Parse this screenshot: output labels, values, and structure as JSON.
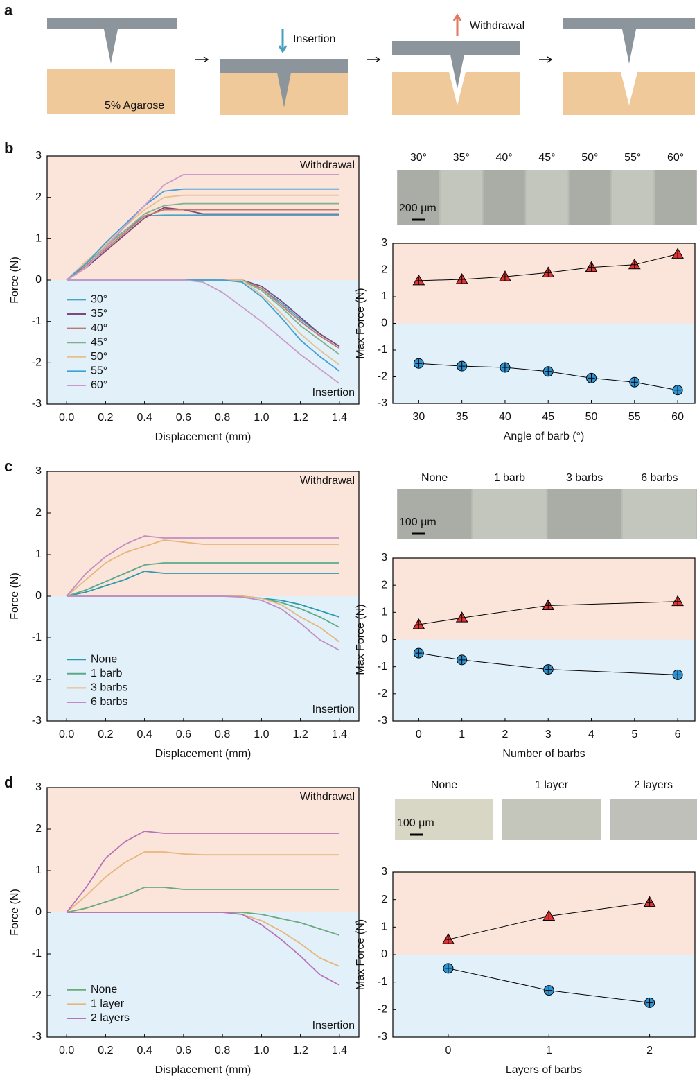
{
  "panel_labels": [
    "a",
    "b",
    "c",
    "d"
  ],
  "schematic": {
    "insertion": "Insertion",
    "withdrawal": "Withdrawal",
    "agarose": "5% Agarose"
  },
  "image_panels": [
    {
      "labels": [
        "30°",
        "35°",
        "40°",
        "45°",
        "50°",
        "55°",
        "60°"
      ],
      "scale": "200 μm"
    },
    {
      "labels": [
        "None",
        "1 barb",
        "3 barbs",
        "6 barbs"
      ],
      "scale": "100 μm"
    },
    {
      "labels": [
        "None",
        "1 layer",
        "2 layers"
      ],
      "scale": "100 μm"
    }
  ],
  "chart_data": [
    {
      "type": "line",
      "x_label": "Displacement (mm)",
      "y_label": "Force (N)",
      "annotations": [
        "Withdrawal",
        "Insertion"
      ],
      "legend": "lower left",
      "x": [
        0,
        0.1,
        0.2,
        0.3,
        0.4,
        0.5,
        0.6,
        0.7,
        0.8,
        0.9,
        1.0,
        1.1,
        1.2,
        1.3,
        1.4
      ],
      "xlim": [
        -0.1,
        1.5
      ],
      "xticks": [
        {
          "value": 0,
          "label": "0.0"
        },
        0.2,
        0.4,
        0.6,
        0.8,
        {
          "value": 1,
          "label": "1.0"
        },
        1.2,
        1.4
      ],
      "ylim": [
        -3,
        3
      ],
      "yticks": [
        -3,
        -2,
        -1,
        0,
        1,
        2,
        3
      ],
      "series": [
        {
          "name": "30°",
          "color": "#4aa3c8",
          "values": [
            0,
            0.45,
            0.85,
            1.2,
            1.55,
            1.57,
            1.57,
            1.57,
            1.57,
            1.57,
            1.57,
            1.57,
            1.57,
            1.57,
            1.57
          ],
          "insertion_values": [
            0,
            0,
            0,
            0,
            0,
            0,
            0,
            0,
            0,
            -0.02,
            -0.2,
            -0.55,
            -0.95,
            -1.3,
            -1.6
          ]
        },
        {
          "name": "35°",
          "color": "#7b4a7a",
          "values": [
            0,
            0.3,
            0.7,
            1.1,
            1.5,
            1.75,
            1.7,
            1.6,
            1.6,
            1.6,
            1.6,
            1.6,
            1.6,
            1.6,
            1.6
          ],
          "insertion_values": [
            0,
            0,
            0,
            0,
            0,
            0,
            0,
            0,
            0,
            0,
            -0.15,
            -0.5,
            -0.9,
            -1.3,
            -1.6
          ]
        },
        {
          "name": "40°",
          "color": "#c0776e",
          "values": [
            0,
            0.35,
            0.75,
            1.15,
            1.55,
            1.7,
            1.7,
            1.7,
            1.7,
            1.7,
            1.7,
            1.7,
            1.7,
            1.7,
            1.7
          ],
          "insertion_values": [
            0,
            0,
            0,
            0,
            0,
            0,
            0,
            0,
            0,
            0,
            -0.2,
            -0.6,
            -1.0,
            -1.35,
            -1.65
          ]
        },
        {
          "name": "45°",
          "color": "#7fb08a",
          "values": [
            0,
            0.4,
            0.8,
            1.2,
            1.6,
            1.8,
            1.85,
            1.85,
            1.85,
            1.85,
            1.85,
            1.85,
            1.85,
            1.85,
            1.85
          ],
          "insertion_values": [
            0,
            0,
            0,
            0,
            0,
            0,
            0,
            0,
            0,
            0,
            -0.25,
            -0.65,
            -1.1,
            -1.45,
            -1.8
          ]
        },
        {
          "name": "50°",
          "color": "#e8c08a",
          "values": [
            0,
            0.45,
            0.85,
            1.3,
            1.7,
            2.0,
            2.05,
            2.05,
            2.05,
            2.05,
            2.05,
            2.05,
            2.05,
            2.05,
            2.05
          ],
          "insertion_values": [
            0,
            0,
            0,
            0,
            0,
            0,
            0,
            0,
            0,
            0,
            -0.35,
            -0.8,
            -1.3,
            -1.7,
            -2.05
          ]
        },
        {
          "name": "55°",
          "color": "#3f9fd6",
          "values": [
            0,
            0.4,
            0.9,
            1.35,
            1.8,
            2.15,
            2.2,
            2.2,
            2.2,
            2.2,
            2.2,
            2.2,
            2.2,
            2.2,
            2.2
          ],
          "insertion_values": [
            0,
            0,
            0,
            0,
            0,
            0,
            0,
            0,
            0,
            -0.05,
            -0.4,
            -0.9,
            -1.45,
            -1.85,
            -2.2
          ]
        },
        {
          "name": "60°",
          "color": "#c99bc9",
          "values": [
            0,
            0.3,
            0.8,
            1.3,
            1.8,
            2.3,
            2.55,
            2.55,
            2.55,
            2.55,
            2.55,
            2.55,
            2.55,
            2.55,
            2.55
          ],
          "insertion_values": [
            0,
            0,
            0,
            0,
            0,
            0,
            0,
            -0.05,
            -0.3,
            -0.65,
            -1.0,
            -1.4,
            -1.8,
            -2.15,
            -2.5
          ]
        }
      ]
    },
    {
      "type": "scatter",
      "x_label": "Angle of barb (°)",
      "y_label": "Max Force (N)",
      "x": [
        30,
        35,
        40,
        45,
        50,
        55,
        60
      ],
      "xlim": [
        27,
        62
      ],
      "xticks": [
        30,
        35,
        40,
        45,
        50,
        55,
        60
      ],
      "ylim": [
        -3,
        3
      ],
      "yticks": [
        -3,
        -2,
        -1,
        0,
        1,
        2,
        3
      ],
      "series": [
        {
          "color": "#e03434",
          "marker": "triangle",
          "values": [
            1.6,
            1.65,
            1.75,
            1.9,
            2.1,
            2.2,
            2.6
          ]
        },
        {
          "color": "#2f93d2",
          "marker": "circle",
          "values": [
            -1.5,
            -1.6,
            -1.65,
            -1.8,
            -2.05,
            -2.2,
            -2.5
          ]
        }
      ]
    },
    {
      "type": "line",
      "x_label": "Displacement (mm)",
      "y_label": "Force (N)",
      "annotations": [
        "Withdrawal",
        "Insertion"
      ],
      "legend": "lower left",
      "x": [
        0,
        0.1,
        0.2,
        0.3,
        0.4,
        0.5,
        0.6,
        0.7,
        0.8,
        0.9,
        1.0,
        1.1,
        1.2,
        1.3,
        1.4
      ],
      "xlim": [
        -0.1,
        1.5
      ],
      "xticks": [
        {
          "value": 0,
          "label": "0.0"
        },
        0.2,
        0.4,
        0.6,
        0.8,
        {
          "value": 1,
          "label": "1.0"
        },
        1.2,
        1.4
      ],
      "ylim": [
        -3,
        3
      ],
      "yticks": [
        -3,
        -2,
        -1,
        0,
        1,
        2,
        3
      ],
      "series": [
        {
          "name": "None",
          "color": "#2a9aae",
          "values": [
            0,
            0.1,
            0.25,
            0.4,
            0.6,
            0.55,
            0.55,
            0.55,
            0.55,
            0.55,
            0.55,
            0.55,
            0.55,
            0.55,
            0.55
          ],
          "insertion_values": [
            0,
            0,
            0,
            0,
            0,
            0,
            0,
            0,
            0,
            0,
            -0.05,
            -0.1,
            -0.2,
            -0.35,
            -0.5
          ]
        },
        {
          "name": "1 barb",
          "color": "#5aaa8a",
          "values": [
            0,
            0.15,
            0.35,
            0.55,
            0.75,
            0.8,
            0.8,
            0.8,
            0.8,
            0.8,
            0.8,
            0.8,
            0.8,
            0.8,
            0.8
          ],
          "insertion_values": [
            0,
            0,
            0,
            0,
            0,
            0,
            0,
            0,
            0,
            0,
            -0.05,
            -0.15,
            -0.3,
            -0.5,
            -0.75
          ]
        },
        {
          "name": "3 barbs",
          "color": "#e6b77c",
          "values": [
            0,
            0.4,
            0.8,
            1.05,
            1.2,
            1.35,
            1.3,
            1.25,
            1.25,
            1.25,
            1.25,
            1.25,
            1.25,
            1.25,
            1.25
          ],
          "insertion_values": [
            0,
            0,
            0,
            0,
            0,
            0,
            0,
            0,
            0,
            0,
            -0.05,
            -0.2,
            -0.5,
            -0.75,
            -1.1
          ]
        },
        {
          "name": "6 barbs",
          "color": "#c28cc2",
          "values": [
            0,
            0.55,
            0.95,
            1.25,
            1.45,
            1.4,
            1.4,
            1.4,
            1.4,
            1.4,
            1.4,
            1.4,
            1.4,
            1.4,
            1.4
          ],
          "insertion_values": [
            0,
            0,
            0,
            0,
            0,
            0,
            0,
            0,
            0,
            -0.02,
            -0.1,
            -0.3,
            -0.65,
            -1.05,
            -1.3
          ]
        }
      ]
    },
    {
      "type": "scatter",
      "x_label": "Number of barbs",
      "y_label": "Max Force (N)",
      "x": [
        0,
        1,
        3,
        6
      ],
      "xlim": [
        -0.6,
        6.4
      ],
      "xticks": [
        0,
        1,
        2,
        3,
        4,
        5,
        6
      ],
      "ylim": [
        -3,
        3
      ],
      "yticks": [
        -3,
        -2,
        -1,
        0,
        1,
        2,
        3
      ],
      "series": [
        {
          "color": "#e03434",
          "marker": "triangle",
          "values": [
            0.55,
            0.8,
            1.25,
            1.4
          ]
        },
        {
          "color": "#2f93d2",
          "marker": "circle",
          "values": [
            -0.5,
            -0.75,
            -1.1,
            -1.3
          ]
        }
      ]
    },
    {
      "type": "line",
      "x_label": "Displacement (mm)",
      "y_label": "Force (N)",
      "annotations": [
        "Withdrawal",
        "Insertion"
      ],
      "legend": "lower left",
      "x": [
        0,
        0.1,
        0.2,
        0.3,
        0.4,
        0.5,
        0.6,
        0.7,
        0.8,
        0.9,
        1.0,
        1.1,
        1.2,
        1.3,
        1.4
      ],
      "xlim": [
        -0.1,
        1.5
      ],
      "xticks": [
        {
          "value": 0,
          "label": "0.0"
        },
        0.2,
        0.4,
        0.6,
        0.8,
        {
          "value": 1,
          "label": "1.0"
        },
        1.2,
        1.4
      ],
      "ylim": [
        -3,
        3
      ],
      "yticks": [
        -3,
        -2,
        -1,
        0,
        1,
        2,
        3
      ],
      "series": [
        {
          "name": "None",
          "color": "#6aaa7a",
          "values": [
            0,
            0.1,
            0.25,
            0.4,
            0.6,
            0.6,
            0.55,
            0.55,
            0.55,
            0.55,
            0.55,
            0.55,
            0.55,
            0.55,
            0.55
          ],
          "insertion_values": [
            0,
            0,
            0,
            0,
            0,
            0,
            0,
            0,
            0,
            0,
            -0.05,
            -0.15,
            -0.25,
            -0.4,
            -0.55
          ]
        },
        {
          "name": "1 layer",
          "color": "#e8b67a",
          "values": [
            0,
            0.4,
            0.85,
            1.2,
            1.45,
            1.45,
            1.4,
            1.38,
            1.38,
            1.38,
            1.38,
            1.38,
            1.38,
            1.38,
            1.38
          ],
          "insertion_values": [
            0,
            0,
            0,
            0,
            0,
            0,
            0,
            0,
            0,
            -0.05,
            -0.2,
            -0.45,
            -0.75,
            -1.1,
            -1.3
          ]
        },
        {
          "name": "2 layers",
          "color": "#b872b8",
          "values": [
            0,
            0.6,
            1.3,
            1.7,
            1.95,
            1.9,
            1.9,
            1.9,
            1.9,
            1.9,
            1.9,
            1.9,
            1.9,
            1.9,
            1.9
          ],
          "insertion_values": [
            0,
            0,
            0,
            0,
            0,
            0,
            0,
            0,
            0,
            -0.05,
            -0.3,
            -0.65,
            -1.05,
            -1.5,
            -1.75
          ]
        }
      ]
    },
    {
      "type": "scatter",
      "x_label": "Layers of barbs",
      "y_label": "Max Force (N)",
      "x": [
        0,
        1,
        2
      ],
      "xlim": [
        -0.55,
        2.45
      ],
      "xticks": [
        0,
        1,
        2
      ],
      "ylim": [
        -3,
        3
      ],
      "yticks": [
        -3,
        -2,
        -1,
        0,
        1,
        2,
        3
      ],
      "series": [
        {
          "color": "#e03434",
          "marker": "triangle",
          "values": [
            0.55,
            1.4,
            1.9
          ]
        },
        {
          "color": "#2f93d2",
          "marker": "circle",
          "values": [
            -0.5,
            -1.3,
            -1.75
          ]
        }
      ]
    }
  ]
}
